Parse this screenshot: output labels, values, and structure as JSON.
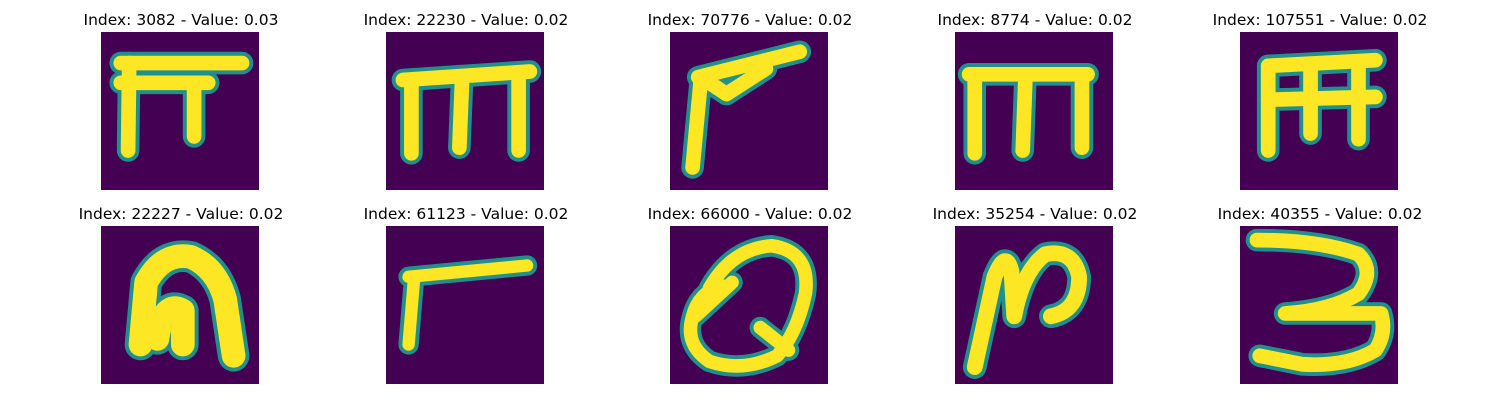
{
  "colors": {
    "background": "#440154",
    "foreground": "#fde725",
    "edge": "#21908c"
  },
  "chart_data": {
    "type": "image-grid",
    "rows": 2,
    "cols": 5,
    "colormap": "viridis",
    "panels": [
      {
        "title": "Index: 3082 - Value: 0.03",
        "index": 3082,
        "value": 0.03,
        "glyph": "pi-like"
      },
      {
        "title": "Index: 22230 - Value: 0.02",
        "index": 22230,
        "value": 0.02,
        "glyph": "m"
      },
      {
        "title": "Index: 70776 - Value: 0.02",
        "index": 70776,
        "value": 0.02,
        "glyph": "check-like"
      },
      {
        "title": "Index: 8774 - Value: 0.02",
        "index": 8774,
        "value": 0.02,
        "glyph": "m"
      },
      {
        "title": "Index: 107551 - Value: 0.02",
        "index": 107551,
        "value": 0.02,
        "glyph": "m"
      },
      {
        "title": "Index: 22227 - Value: 0.02",
        "index": 22227,
        "value": 0.02,
        "glyph": "n"
      },
      {
        "title": "Index: 61123 - Value: 0.02",
        "index": 61123,
        "value": 0.02,
        "glyph": "r-like"
      },
      {
        "title": "Index: 66000 - Value: 0.02",
        "index": 66000,
        "value": 0.02,
        "glyph": "Q"
      },
      {
        "title": "Index: 35254 - Value: 0.02",
        "index": 35254,
        "value": 0.02,
        "glyph": "N"
      },
      {
        "title": "Index: 40355 - Value: 0.02",
        "index": 40355,
        "value": 0.02,
        "glyph": "3"
      }
    ]
  }
}
